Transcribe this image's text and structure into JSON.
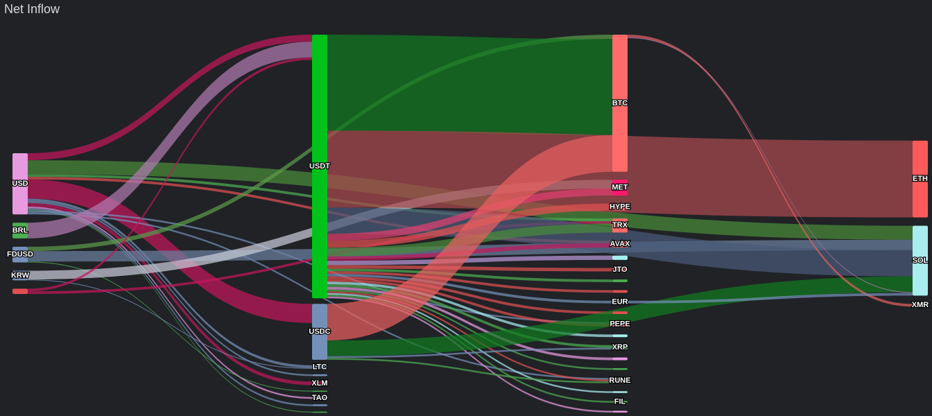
{
  "chart_data": {
    "type": "sankey",
    "title": "Net Inflow",
    "columns": [
      [
        {
          "name": "USD",
          "color": "#e89ae0"
        },
        {
          "name": "BRL",
          "color": "#4caf50"
        },
        {
          "name": "FDUSD",
          "color": "#7590b8"
        },
        {
          "name": "KRW",
          "color": "#7590b8"
        },
        {
          "name": null,
          "color": "#e05050"
        }
      ],
      [
        {
          "name": "USDT",
          "color": "#00c21a"
        },
        {
          "name": "USDC",
          "color": "#7590b8"
        },
        {
          "name": "LTC",
          "color": "#7590b8"
        },
        {
          "name": null,
          "color": "#7590b8"
        },
        {
          "name": "XLM",
          "color": "#c2185b"
        },
        {
          "name": null,
          "color": "#4caf50"
        },
        {
          "name": "TAO",
          "color": "#b0a0d0"
        },
        {
          "name": null,
          "color": "#7590b8"
        },
        {
          "name": null,
          "color": "#4caf50"
        }
      ],
      [
        {
          "name": "BTC",
          "color": "#ff6b6b"
        },
        {
          "name": "MET",
          "color": "#ff1a6e"
        },
        {
          "name": "HYPE",
          "color": "#ff6b6b"
        },
        {
          "name": "TRX",
          "color": "#ff6b6b"
        },
        {
          "name": "AVAX",
          "color": "#ff6b6b"
        },
        {
          "name": null,
          "color": "#a8eef0"
        },
        {
          "name": "JTO",
          "color": "#ff6b6b"
        },
        {
          "name": null,
          "color": "#4caf50"
        },
        {
          "name": null,
          "color": "#e05050"
        },
        {
          "name": "EUR",
          "color": "#7590b8"
        },
        {
          "name": null,
          "color": "#e05050"
        },
        {
          "name": "PEPE",
          "color": "#ff6b6b"
        },
        {
          "name": null,
          "color": "#a8eef0"
        },
        {
          "name": "XRP",
          "color": "#4caf50"
        },
        {
          "name": null,
          "color": "#e89ae0"
        },
        {
          "name": null,
          "color": "#4caf50"
        },
        {
          "name": "RUNE",
          "color": "#ff6b6b"
        },
        {
          "name": null,
          "color": "#a8eef0"
        },
        {
          "name": "FIL",
          "color": "#4caf50"
        },
        {
          "name": null,
          "color": "#e89ae0"
        }
      ],
      [
        {
          "name": "ETH",
          "color": "#ff5a5a"
        },
        {
          "name": "SOL",
          "color": "#a8eef0"
        },
        {
          "name": "XMR",
          "color": "#ff6b6b"
        }
      ]
    ],
    "links": [
      {
        "source": [
          0,
          0
        ],
        "target": [
          1,
          0
        ],
        "value": 8,
        "color": "#c2185b"
      },
      {
        "source": [
          0,
          0
        ],
        "target": [
          3,
          1
        ],
        "value": 16,
        "color": "#4a8a3a"
      },
      {
        "source": [
          0,
          0
        ],
        "target": [
          2,
          3
        ],
        "value": 3,
        "color": "#4caf50"
      },
      {
        "source": [
          0,
          0
        ],
        "target": [
          2,
          4
        ],
        "value": 3,
        "color": "#e05050"
      },
      {
        "source": [
          0,
          0
        ],
        "target": [
          1,
          1
        ],
        "value": 22,
        "color": "#c2185b"
      },
      {
        "source": [
          0,
          0
        ],
        "target": [
          1,
          2
        ],
        "value": 3,
        "color": "#7590b8"
      },
      {
        "source": [
          0,
          0
        ],
        "target": [
          1,
          3
        ],
        "value": 2,
        "color": "#7590b8"
      },
      {
        "source": [
          0,
          0
        ],
        "target": [
          1,
          4
        ],
        "value": 4,
        "color": "#c2185b"
      },
      {
        "source": [
          0,
          0
        ],
        "target": [
          1,
          6
        ],
        "value": 2,
        "color": "#e89ae0"
      },
      {
        "source": [
          0,
          0
        ],
        "target": [
          1,
          7
        ],
        "value": 2,
        "color": "#7590b8"
      },
      {
        "source": [
          0,
          0
        ],
        "target": [
          1,
          8
        ],
        "value": 1,
        "color": "#4caf50"
      },
      {
        "source": [
          0,
          0
        ],
        "target": [
          2,
          11
        ],
        "value": 2,
        "color": "#7590b8"
      },
      {
        "source": [
          0,
          0
        ],
        "target": [
          2,
          16
        ],
        "value": 2,
        "color": "#7590b8"
      },
      {
        "source": [
          0,
          1
        ],
        "target": [
          1,
          0
        ],
        "value": 18,
        "color": "#b07ab0"
      },
      {
        "source": [
          0,
          2
        ],
        "target": [
          2,
          0
        ],
        "value": 5,
        "color": "#5a9a4a"
      },
      {
        "source": [
          0,
          2
        ],
        "target": [
          3,
          1
        ],
        "value": 12,
        "color": "#6a80a0"
      },
      {
        "source": [
          0,
          2
        ],
        "target": [
          1,
          5
        ],
        "value": 1,
        "color": "#4caf50"
      },
      {
        "source": [
          0,
          3
        ],
        "target": [
          2,
          1
        ],
        "value": 10,
        "color": "#c8ccd8"
      },
      {
        "source": [
          0,
          3
        ],
        "target": [
          1,
          2
        ],
        "value": 1,
        "color": "#7590b8"
      },
      {
        "source": [
          0,
          4
        ],
        "target": [
          1,
          0
        ],
        "value": 3,
        "color": "#c2185b"
      },
      {
        "source": [
          0,
          4
        ],
        "target": [
          2,
          3
        ],
        "value": 3,
        "color": "#c2185b"
      },
      {
        "source": [
          1,
          0
        ],
        "target": [
          2,
          0
        ],
        "value": 110,
        "color": "#107a20"
      },
      {
        "source": [
          1,
          0
        ],
        "target": [
          3,
          0
        ],
        "value": 88,
        "color": "#a84a4e"
      },
      {
        "source": [
          1,
          0
        ],
        "target": [
          3,
          1
        ],
        "value": 30,
        "color": "#4a5a78"
      },
      {
        "source": [
          1,
          0
        ],
        "target": [
          2,
          1
        ],
        "value": 8,
        "color": "#e04070"
      },
      {
        "source": [
          1,
          0
        ],
        "target": [
          2,
          2
        ],
        "value": 8,
        "color": "#e05050"
      },
      {
        "source": [
          1,
          0
        ],
        "target": [
          2,
          3
        ],
        "value": 10,
        "color": "#4a8a3a"
      },
      {
        "source": [
          1,
          0
        ],
        "target": [
          2,
          4
        ],
        "value": 5,
        "color": "#c2185b"
      },
      {
        "source": [
          1,
          0
        ],
        "target": [
          2,
          5
        ],
        "value": 5,
        "color": "#b898d8"
      },
      {
        "source": [
          1,
          0
        ],
        "target": [
          2,
          6
        ],
        "value": 4,
        "color": "#e05050"
      },
      {
        "source": [
          1,
          0
        ],
        "target": [
          2,
          7
        ],
        "value": 3,
        "color": "#4caf50"
      },
      {
        "source": [
          1,
          0
        ],
        "target": [
          2,
          8
        ],
        "value": 3,
        "color": "#e05050"
      },
      {
        "source": [
          1,
          0
        ],
        "target": [
          2,
          9
        ],
        "value": 3,
        "color": "#7590b8"
      },
      {
        "source": [
          1,
          0
        ],
        "target": [
          2,
          10
        ],
        "value": 3,
        "color": "#e05050"
      },
      {
        "source": [
          1,
          0
        ],
        "target": [
          2,
          11
        ],
        "value": 3,
        "color": "#e05050"
      },
      {
        "source": [
          1,
          0
        ],
        "target": [
          2,
          12
        ],
        "value": 3,
        "color": "#a8eef0"
      },
      {
        "source": [
          1,
          0
        ],
        "target": [
          2,
          13
        ],
        "value": 3,
        "color": "#4caf50"
      },
      {
        "source": [
          1,
          0
        ],
        "target": [
          2,
          14
        ],
        "value": 3,
        "color": "#e89ae0"
      },
      {
        "source": [
          1,
          0
        ],
        "target": [
          2,
          15
        ],
        "value": 2,
        "color": "#4caf50"
      },
      {
        "source": [
          1,
          0
        ],
        "target": [
          2,
          16
        ],
        "value": 2,
        "color": "#e05050"
      },
      {
        "source": [
          1,
          0
        ],
        "target": [
          2,
          17
        ],
        "value": 2,
        "color": "#a8eef0"
      },
      {
        "source": [
          1,
          0
        ],
        "target": [
          2,
          18
        ],
        "value": 2,
        "color": "#4caf50"
      },
      {
        "source": [
          1,
          0
        ],
        "target": [
          2,
          19
        ],
        "value": 2,
        "color": "#e89ae0"
      },
      {
        "source": [
          1,
          1
        ],
        "target": [
          2,
          0
        ],
        "value": 42,
        "color": "#e86060"
      },
      {
        "source": [
          1,
          1
        ],
        "target": [
          3,
          1
        ],
        "value": 18,
        "color": "#107a20"
      },
      {
        "source": [
          1,
          1
        ],
        "target": [
          2,
          13
        ],
        "value": 2,
        "color": "#7590b8"
      },
      {
        "source": [
          1,
          1
        ],
        "target": [
          2,
          16
        ],
        "value": 2,
        "color": "#4caf50"
      },
      {
        "source": [
          2,
          0
        ],
        "target": [
          3,
          2
        ],
        "value": 3,
        "color": "#e06060"
      },
      {
        "source": [
          2,
          0
        ],
        "target": [
          3,
          1
        ],
        "value": 1,
        "color": "#b07ab0"
      },
      {
        "source": [
          2,
          9
        ],
        "target": [
          3,
          1
        ],
        "value": 3,
        "color": "#7590b8"
      }
    ]
  }
}
